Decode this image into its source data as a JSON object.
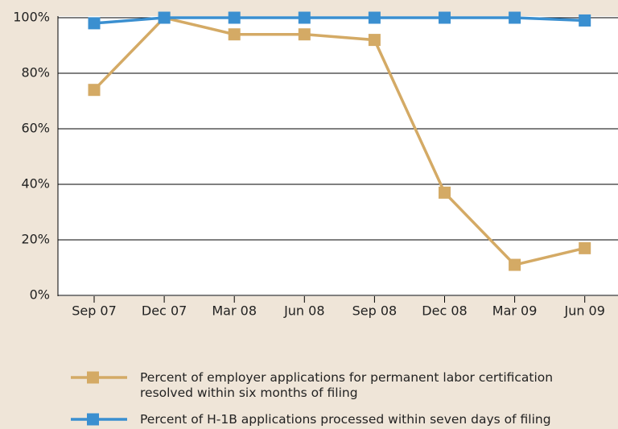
{
  "chart_data": {
    "type": "line",
    "categories": [
      "Sep 07",
      "Dec 07",
      "Mar 08",
      "Jun 08",
      "Sep 08",
      "Dec 08",
      "Mar 09",
      "Jun 09"
    ],
    "series": [
      {
        "name": "Percent of employer applications for permanent labor certification resolved within six months of filing",
        "color": "#d4aa65",
        "values": [
          74,
          100,
          94,
          94,
          92,
          37,
          11,
          17
        ]
      },
      {
        "name": "Percent of H-1B applications processed within seven days of filing",
        "color": "#3a8fd0",
        "values": [
          98,
          100,
          100,
          100,
          100,
          100,
          100,
          99
        ]
      }
    ],
    "ylim": [
      0,
      100
    ],
    "yticks": [
      {
        "value": 0,
        "label": "0%"
      },
      {
        "value": 20,
        "label": "20%"
      },
      {
        "value": 40,
        "label": "40%"
      },
      {
        "value": 60,
        "label": "60%"
      },
      {
        "value": 80,
        "label": "80%"
      },
      {
        "value": 100,
        "label": "100%"
      }
    ],
    "grid": true
  }
}
